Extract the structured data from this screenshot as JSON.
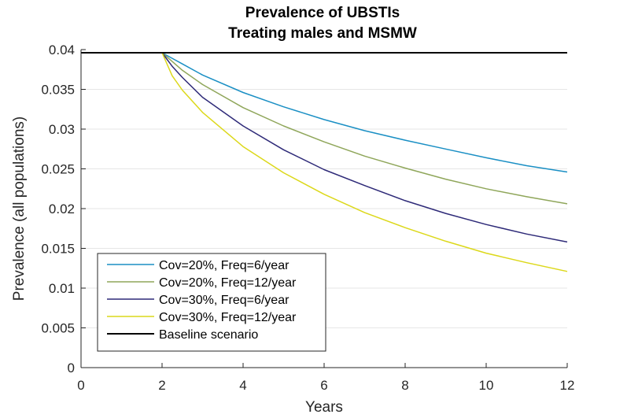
{
  "chart_data": {
    "type": "line",
    "title": [
      "Prevalence of UBSTIs",
      "Treating males and MSMW"
    ],
    "xlabel": "Years",
    "ylabel": "Prevalence (all populations)",
    "xlim": [
      0,
      12
    ],
    "ylim": [
      0,
      0.04
    ],
    "xticks": [
      0,
      2,
      4,
      6,
      8,
      10,
      12
    ],
    "xtick_labels": [
      "0",
      "2",
      "4",
      "6",
      "8",
      "10",
      "12"
    ],
    "yticks": [
      0,
      0.005,
      0.01,
      0.015,
      0.02,
      0.025,
      0.03,
      0.035,
      0.04
    ],
    "ytick_labels": [
      "0",
      "0.005",
      "0.01",
      "0.015",
      "0.02",
      "0.025",
      "0.03",
      "0.035",
      "0.04"
    ],
    "grid": "horizontal",
    "legend_position": "bottom-left",
    "series": [
      {
        "name": "Cov=20%, Freq=6/year",
        "color": "#1a8fc4",
        "x": [
          2,
          2.25,
          2.5,
          3,
          4,
          5,
          6,
          7,
          8,
          9,
          10,
          11,
          12
        ],
        "y": [
          0.0396,
          0.0389,
          0.0382,
          0.0368,
          0.0346,
          0.0328,
          0.0312,
          0.0298,
          0.0286,
          0.0275,
          0.0264,
          0.0254,
          0.0246
        ]
      },
      {
        "name": "Cov=20%, Freq=12/year",
        "color": "#8fa65a",
        "x": [
          2,
          2.25,
          2.5,
          3,
          4,
          5,
          6,
          7,
          8,
          9,
          10,
          11,
          12
        ],
        "y": [
          0.0396,
          0.0385,
          0.0374,
          0.0356,
          0.0327,
          0.0304,
          0.0284,
          0.0266,
          0.0251,
          0.0237,
          0.0225,
          0.0215,
          0.0206
        ]
      },
      {
        "name": "Cov=30%, Freq=6/year",
        "color": "#2e2a78",
        "x": [
          2,
          2.25,
          2.5,
          3,
          4,
          5,
          6,
          7,
          8,
          9,
          10,
          11,
          12
        ],
        "y": [
          0.0396,
          0.0379,
          0.0365,
          0.034,
          0.0304,
          0.0274,
          0.0249,
          0.0229,
          0.021,
          0.0194,
          0.018,
          0.0168,
          0.0158
        ]
      },
      {
        "name": "Cov=30%, Freq=12/year",
        "color": "#dcd81a",
        "x": [
          2,
          2.25,
          2.5,
          3,
          4,
          5,
          6,
          7,
          8,
          9,
          10,
          11,
          12
        ],
        "y": [
          0.0396,
          0.0367,
          0.0349,
          0.0321,
          0.0278,
          0.0245,
          0.0218,
          0.0195,
          0.0176,
          0.0159,
          0.0144,
          0.0132,
          0.0121
        ]
      },
      {
        "name": "Baseline scenario",
        "color": "#000000",
        "x": [
          0,
          12
        ],
        "y": [
          0.0396,
          0.0396
        ]
      }
    ]
  }
}
